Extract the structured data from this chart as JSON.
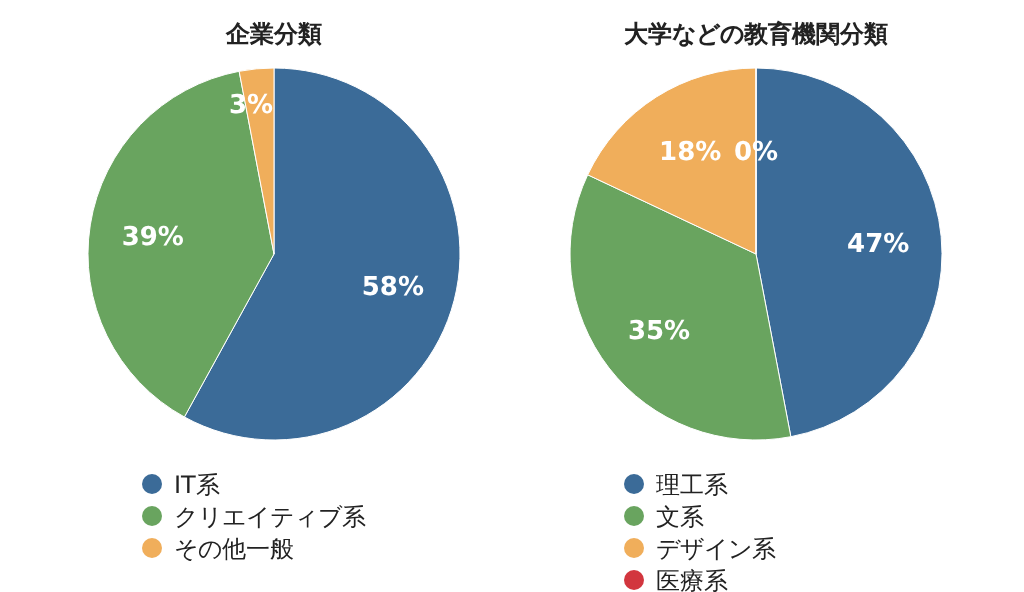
{
  "chart_data": [
    {
      "type": "pie",
      "title": "企業分類",
      "categories": [
        "IT系",
        "クリエイティブ系",
        "その他一般"
      ],
      "values": [
        58,
        39,
        3
      ],
      "value_labels": [
        "58%",
        "39%",
        "3%"
      ],
      "colors": [
        "#3b6b98",
        "#69a45f",
        "#f0ae5b"
      ],
      "legend": "bottom"
    },
    {
      "type": "pie",
      "title": "大学などの教育機関分類",
      "categories": [
        "理工系",
        "文系",
        "デザイン系",
        "医療系"
      ],
      "values": [
        47,
        35,
        18,
        0
      ],
      "value_labels": [
        "47%",
        "35%",
        "18%",
        "0%"
      ],
      "colors": [
        "#3b6b98",
        "#69a45f",
        "#f0ae5b",
        "#d2363e"
      ],
      "legend": "bottom"
    }
  ]
}
